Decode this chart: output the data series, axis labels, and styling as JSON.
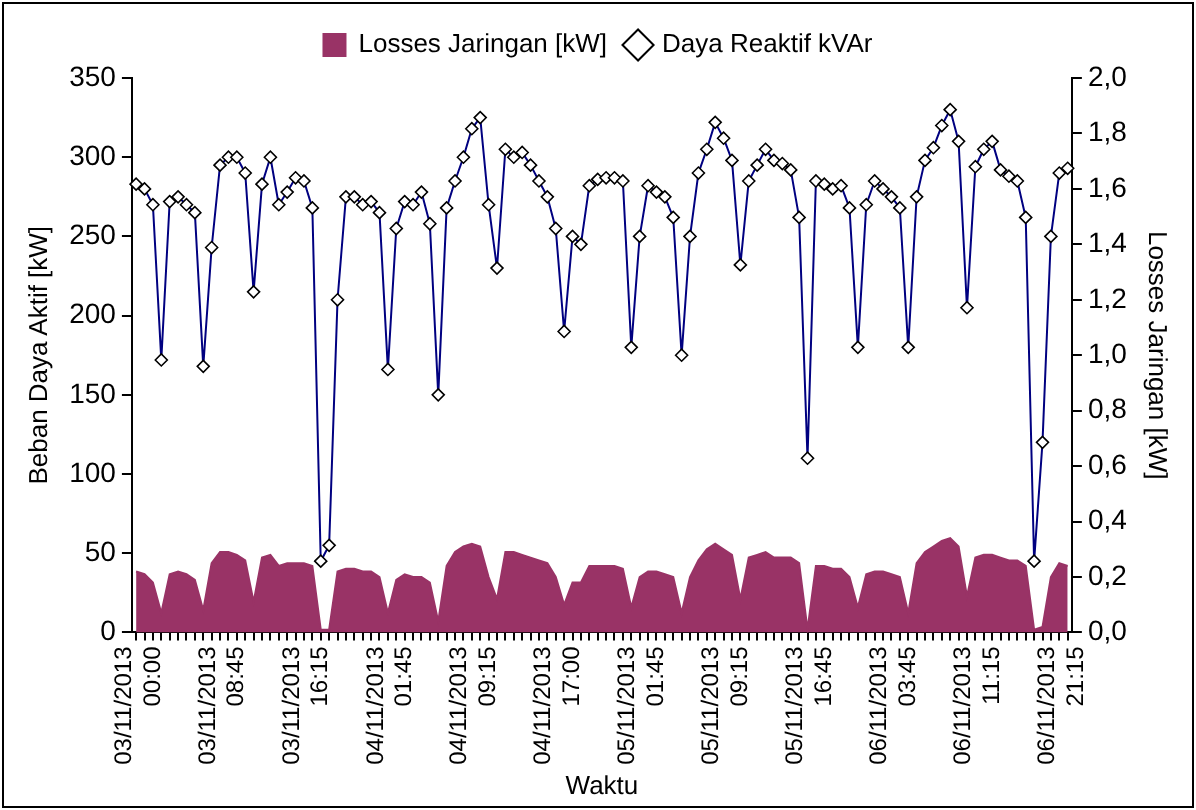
{
  "chart_data": {
    "type": "line",
    "xlabel": "Waktu",
    "ylabel": "Beban Daya Aktif [kW]",
    "y2label": "Losses Jaringan [kW]",
    "categories": [
      "03/11/2013 00:00",
      null,
      null,
      null,
      null,
      null,
      null,
      null,
      null,
      null,
      "03/11/2013 08:45",
      null,
      null,
      null,
      null,
      null,
      null,
      null,
      null,
      null,
      "03/11/2013 16:15",
      null,
      null,
      null,
      null,
      null,
      null,
      null,
      null,
      null,
      "04/11/2013 01:45",
      null,
      null,
      null,
      null,
      null,
      null,
      null,
      null,
      null,
      "04/11/2013 09:15",
      null,
      null,
      null,
      null,
      null,
      null,
      null,
      null,
      null,
      "04/11/2013 17:00",
      null,
      null,
      null,
      null,
      null,
      null,
      null,
      null,
      null,
      "05/11/2013 01:45",
      null,
      null,
      null,
      null,
      null,
      null,
      null,
      null,
      null,
      "05/11/2013 09:15",
      null,
      null,
      null,
      null,
      null,
      null,
      null,
      null,
      null,
      "05/11/2013 16:45",
      null,
      null,
      null,
      null,
      null,
      null,
      null,
      null,
      null,
      "06/11/2013 03:45",
      null,
      null,
      null,
      null,
      null,
      null,
      null,
      null,
      null,
      "06/11/2013 11:15",
      null,
      null,
      null,
      null,
      null,
      null,
      null,
      null,
      null,
      "06/11/2013 21:15",
      null
    ],
    "series": [
      {
        "name": "Losses Jaringan [kW]",
        "type": "area",
        "axis": "y2",
        "color": "#993366",
        "values": [
          0.22,
          0.21,
          0.18,
          0.07,
          0.21,
          0.22,
          0.21,
          0.19,
          0.08,
          0.25,
          0.29,
          0.29,
          0.28,
          0.26,
          0.11,
          0.27,
          0.28,
          0.24,
          0.25,
          0.25,
          0.25,
          0.24,
          0.01,
          0.01,
          0.22,
          0.23,
          0.23,
          0.22,
          0.22,
          0.2,
          0.07,
          0.19,
          0.21,
          0.2,
          0.2,
          0.18,
          0.04,
          0.24,
          0.29,
          0.31,
          0.32,
          0.31,
          0.2,
          0.12,
          0.29,
          0.29,
          0.28,
          0.27,
          0.26,
          0.25,
          0.2,
          0.1,
          0.18,
          0.18,
          0.24,
          0.24,
          0.24,
          0.24,
          0.23,
          0.09,
          0.2,
          0.22,
          0.22,
          0.21,
          0.2,
          0.07,
          0.2,
          0.26,
          0.3,
          0.32,
          0.3,
          0.28,
          0.12,
          0.27,
          0.28,
          0.29,
          0.27,
          0.27,
          0.27,
          0.25,
          0.01,
          0.24,
          0.24,
          0.23,
          0.23,
          0.2,
          0.09,
          0.21,
          0.22,
          0.22,
          0.21,
          0.2,
          0.07,
          0.25,
          0.29,
          0.31,
          0.33,
          0.34,
          0.31,
          0.13,
          0.27,
          0.28,
          0.28,
          0.27,
          0.26,
          0.26,
          0.24,
          0.01,
          0.02,
          0.2,
          0.25,
          0.24
        ]
      },
      {
        "name": "Daya Reaktif kVAr",
        "axis": "y",
        "color": "#000080",
        "marker": "diamond",
        "values": [
          283,
          280,
          270,
          172,
          272,
          275,
          270,
          265,
          168,
          243,
          295,
          300,
          300,
          290,
          215,
          283,
          300,
          270,
          278,
          287,
          285,
          268,
          45,
          55,
          210,
          275,
          275,
          270,
          272,
          265,
          166,
          255,
          272,
          270,
          278,
          258,
          150,
          268,
          285,
          300,
          318,
          325,
          270,
          230,
          305,
          300,
          303,
          295,
          285,
          275,
          255,
          190,
          250,
          245,
          282,
          286,
          287,
          287,
          285,
          180,
          250,
          282,
          278,
          275,
          262,
          175,
          250,
          290,
          305,
          322,
          312,
          298,
          232,
          285,
          295,
          305,
          298,
          296,
          292,
          262,
          110,
          285,
          283,
          280,
          282,
          268,
          180,
          270,
          285,
          280,
          275,
          268,
          180,
          275,
          298,
          306,
          320,
          330,
          310,
          205,
          294,
          305,
          310,
          292,
          288,
          285,
          262,
          45,
          120,
          250,
          290,
          293
        ]
      }
    ],
    "ylim": [
      0,
      350
    ],
    "yticks": [
      0,
      50,
      100,
      150,
      200,
      250,
      300,
      350
    ],
    "y2lim": [
      0,
      2
    ],
    "y2ticks": [
      {
        "value": 0,
        "label": "0,0"
      },
      {
        "value": 0.2,
        "label": "0,2"
      },
      {
        "value": 0.4,
        "label": "0,4"
      },
      {
        "value": 0.6,
        "label": "0,6"
      },
      {
        "value": 0.8,
        "label": "0,8"
      },
      {
        "value": 1,
        "label": "1,0"
      },
      {
        "value": 1.2,
        "label": "1,2"
      },
      {
        "value": 1.4,
        "label": "1,4"
      },
      {
        "value": 1.6,
        "label": "1,6"
      },
      {
        "value": 1.8,
        "label": "1,8"
      },
      {
        "value": 2,
        "label": "2,0"
      }
    ],
    "grid": false,
    "legend": "top",
    "line_style": "solid"
  }
}
